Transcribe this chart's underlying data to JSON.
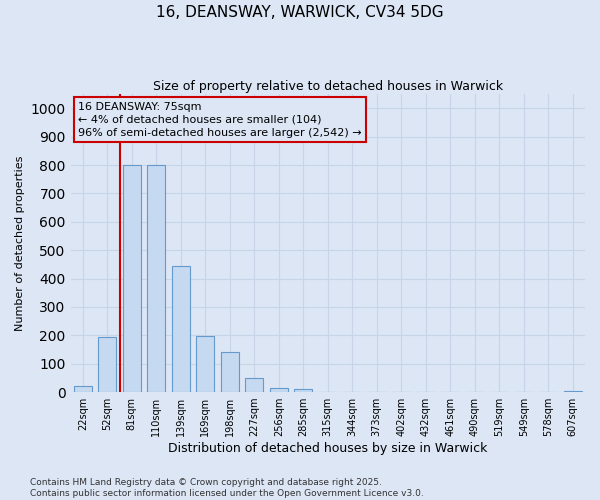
{
  "title": "16, DEANSWAY, WARWICK, CV34 5DG",
  "subtitle": "Size of property relative to detached houses in Warwick",
  "xlabel": "Distribution of detached houses by size in Warwick",
  "ylabel": "Number of detached properties",
  "categories": [
    "22sqm",
    "52sqm",
    "81sqm",
    "110sqm",
    "139sqm",
    "169sqm",
    "198sqm",
    "227sqm",
    "256sqm",
    "285sqm",
    "315sqm",
    "344sqm",
    "373sqm",
    "402sqm",
    "432sqm",
    "461sqm",
    "490sqm",
    "519sqm",
    "549sqm",
    "578sqm",
    "607sqm"
  ],
  "values": [
    20,
    193,
    800,
    800,
    445,
    197,
    143,
    48,
    15,
    10,
    0,
    0,
    0,
    0,
    0,
    0,
    0,
    0,
    0,
    0,
    5
  ],
  "bar_color": "#c5d9f0",
  "bar_edge_color": "#6699cc",
  "vline_color": "#cc0000",
  "vline_x": 1.5,
  "annotation_text": "16 DEANSWAY: 75sqm\n← 4% of detached houses are smaller (104)\n96% of semi-detached houses are larger (2,542) →",
  "annotation_box_edgecolor": "#cc0000",
  "ylim": [
    0,
    1050
  ],
  "yticks": [
    0,
    100,
    200,
    300,
    400,
    500,
    600,
    700,
    800,
    900,
    1000
  ],
  "grid_color": "#c8d4e8",
  "bg_color": "#dce6f5",
  "title_fontsize": 11,
  "subtitle_fontsize": 9,
  "ylabel_fontsize": 8,
  "xlabel_fontsize": 9,
  "footer1": "Contains HM Land Registry data © Crown copyright and database right 2025.",
  "footer2": "Contains public sector information licensed under the Open Government Licence v3.0."
}
